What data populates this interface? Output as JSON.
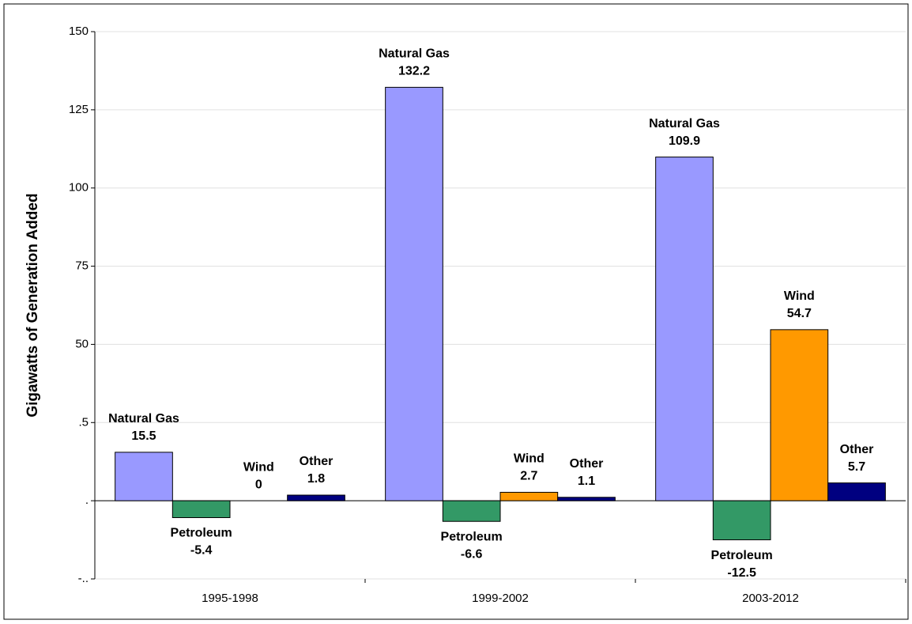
{
  "chart_data": {
    "type": "bar",
    "y_label": "Gigawatts of Generation Added",
    "categories": [
      "1995-1998",
      "1999-2002",
      "2003-2012"
    ],
    "series": [
      {
        "name": "Natural Gas",
        "color": "#9999ff",
        "values": [
          15.5,
          132.2,
          109.9
        ]
      },
      {
        "name": "Petroleum",
        "color": "#339966",
        "values": [
          -5.4,
          -6.6,
          -12.5
        ]
      },
      {
        "name": "Wind",
        "color": "#ff9900",
        "values": [
          0,
          2.7,
          54.7
        ]
      },
      {
        "name": "Other",
        "color": "#000080",
        "values": [
          1.8,
          1.1,
          5.7
        ]
      }
    ],
    "ylim": [
      -25,
      150
    ],
    "yticks": [
      {
        "value": -25,
        "label": "-.."
      },
      {
        "value": 0,
        "label": "."
      },
      {
        "value": 25,
        "label": ".5"
      },
      50,
      75,
      100,
      125,
      150
    ],
    "grid": true
  }
}
